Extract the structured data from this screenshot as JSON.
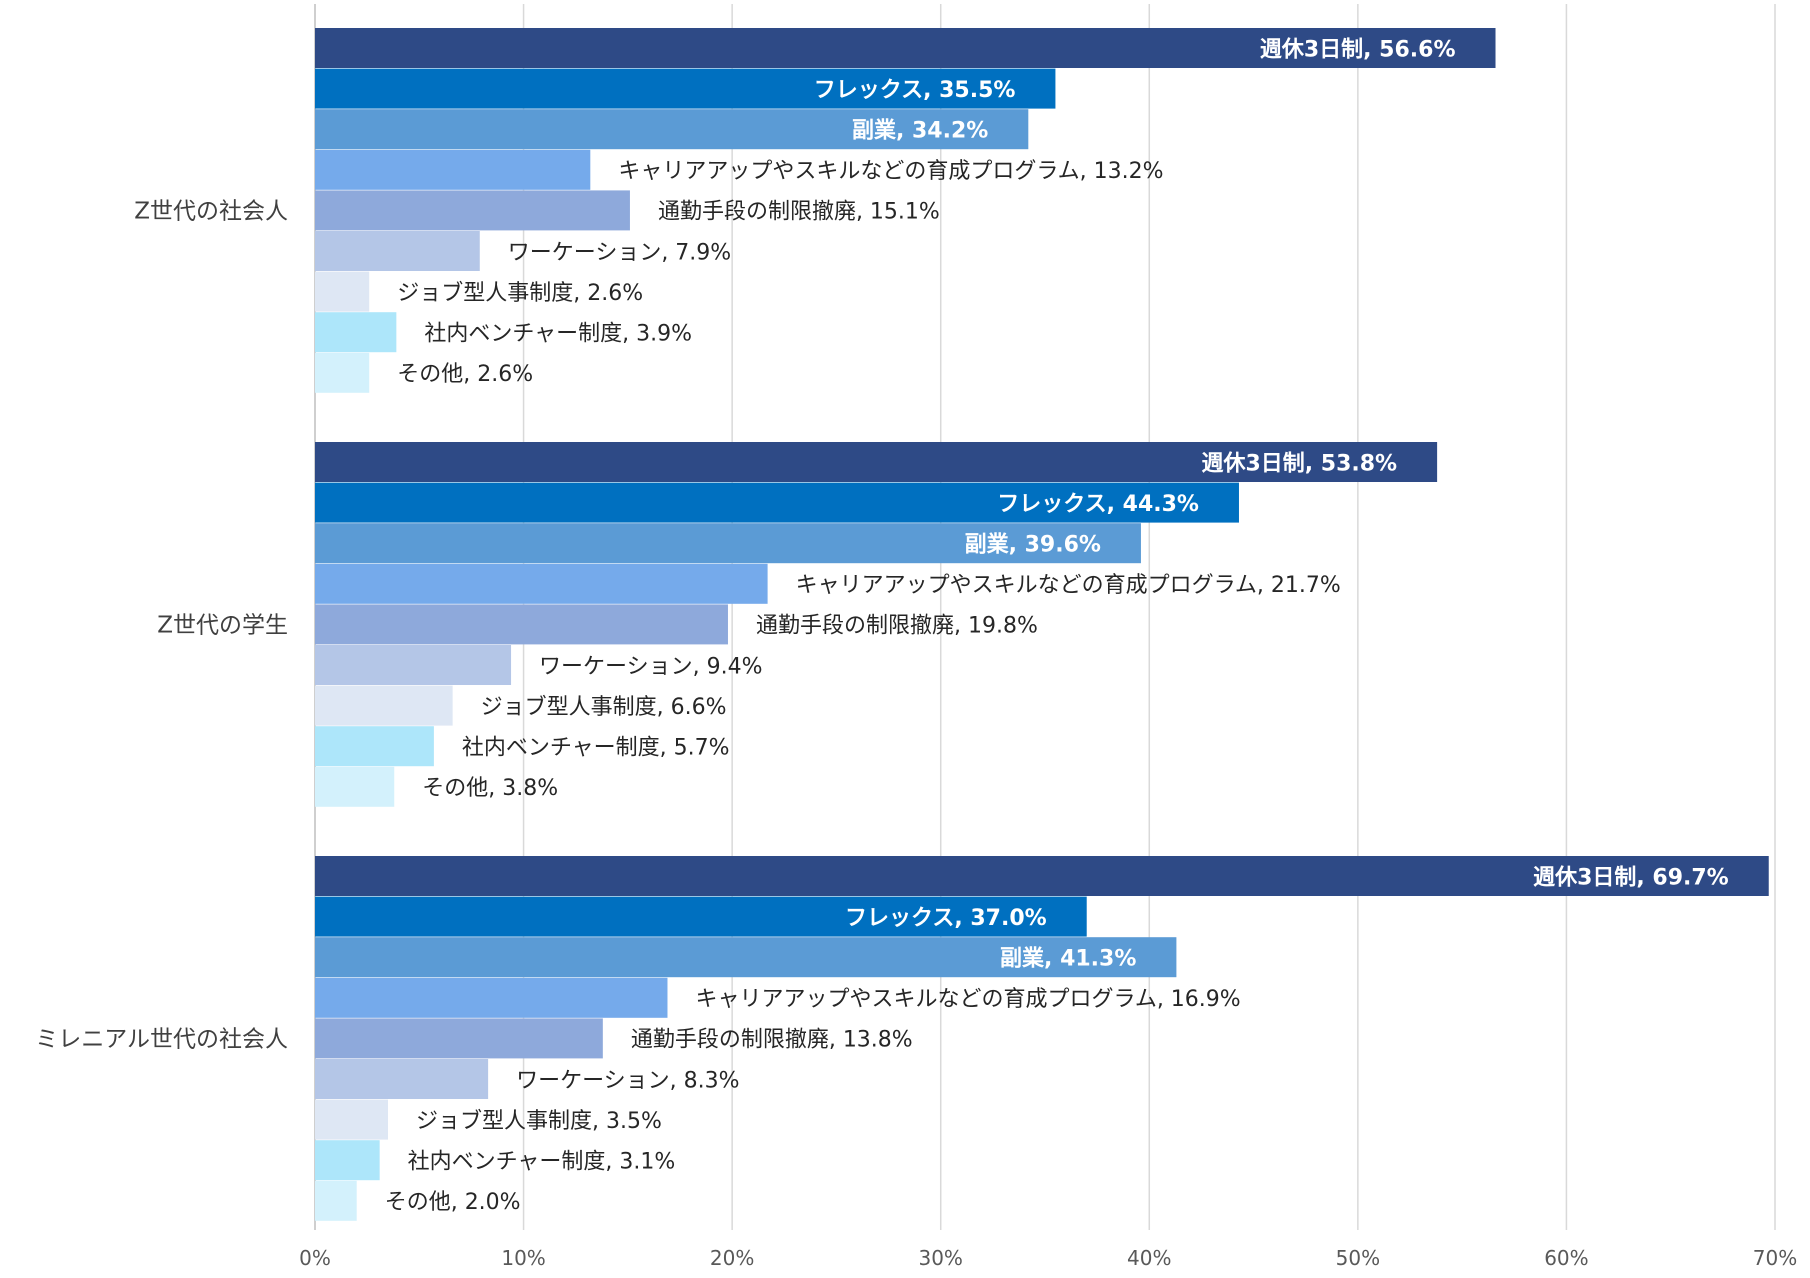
{
  "chart_data": {
    "type": "bar",
    "orientation": "horizontal",
    "title": "",
    "xlabel": "",
    "ylabel": "",
    "xlim": [
      0,
      70
    ],
    "x_ticks": [
      "0%",
      "10%",
      "20%",
      "30%",
      "40%",
      "50%",
      "60%",
      "70%"
    ],
    "grid": true,
    "legend": "none",
    "categories": [
      "Z世代の社会人",
      "Z世代の学生",
      "ミレニアル世代の社会人"
    ],
    "series": [
      {
        "name": "週休3日制",
        "color": "#2E4A86",
        "label_inside": true,
        "values": [
          56.6,
          53.8,
          69.7
        ],
        "labels": [
          "週休3日制,  56.6%",
          "週休3日制, 53.8%",
          "週休3日制, 69.7%"
        ]
      },
      {
        "name": "フレックス",
        "color": "#0070C0",
        "label_inside": true,
        "values": [
          35.5,
          44.3,
          37.0
        ],
        "labels": [
          "フレックス, 35.5%",
          "フレックス, 44.3%",
          "フレックス, 37.0%"
        ]
      },
      {
        "name": "副業",
        "color": "#5B9BD5",
        "label_inside": true,
        "values": [
          34.2,
          39.6,
          41.3
        ],
        "labels": [
          "副業,  34.2%",
          "副業, 39.6%",
          "副業, 41.3%"
        ]
      },
      {
        "name": "キャリアアップやスキルなどの育成プログラム",
        "color": "#75AAEB",
        "label_inside": false,
        "values": [
          13.2,
          21.7,
          16.9
        ],
        "labels": [
          "キャリアアップやスキルなどの育成プログラム, 13.2%",
          "キャリアアップやスキルなどの育成プログラム, 21.7%",
          "キャリアアップやスキルなどの育成プログラム, 16.9%"
        ]
      },
      {
        "name": "通勤手段の制限撤廃",
        "color": "#8EA9DB",
        "label_inside": false,
        "values": [
          15.1,
          19.8,
          13.8
        ],
        "labels": [
          "通勤手段の制限撤廃, 15.1%",
          "通勤手段の制限撤廃, 19.8%",
          "通勤手段の制限撤廃, 13.8%"
        ]
      },
      {
        "name": "ワーケーション",
        "color": "#B4C6E7",
        "label_inside": false,
        "values": [
          7.9,
          9.4,
          8.3
        ],
        "labels": [
          "ワーケーション, 7.9%",
          "ワーケーション, 9.4%",
          "ワーケーション, 8.3%"
        ]
      },
      {
        "name": "ジョブ型人事制度",
        "color": "#DEE7F4",
        "label_inside": false,
        "values": [
          2.6,
          6.6,
          3.5
        ],
        "labels": [
          "ジョブ型人事制度, 2.6%",
          "ジョブ型人事制度, 6.6%",
          "ジョブ型人事制度, 3.5%"
        ]
      },
      {
        "name": "社内ベンチャー制度",
        "color": "#ADE6FA",
        "label_inside": false,
        "values": [
          3.9,
          5.7,
          3.1
        ],
        "labels": [
          "社内ベンチャー制度, 3.9%",
          "社内ベンチャー制度, 5.7%",
          "社内ベンチャー制度, 3.1%"
        ]
      },
      {
        "name": "その他",
        "color": "#D3F1FC",
        "label_inside": false,
        "values": [
          2.6,
          3.8,
          2.0
        ],
        "labels": [
          "その他, 2.6%",
          "その他, 3.8%",
          "その他, 2.0%"
        ]
      }
    ]
  }
}
